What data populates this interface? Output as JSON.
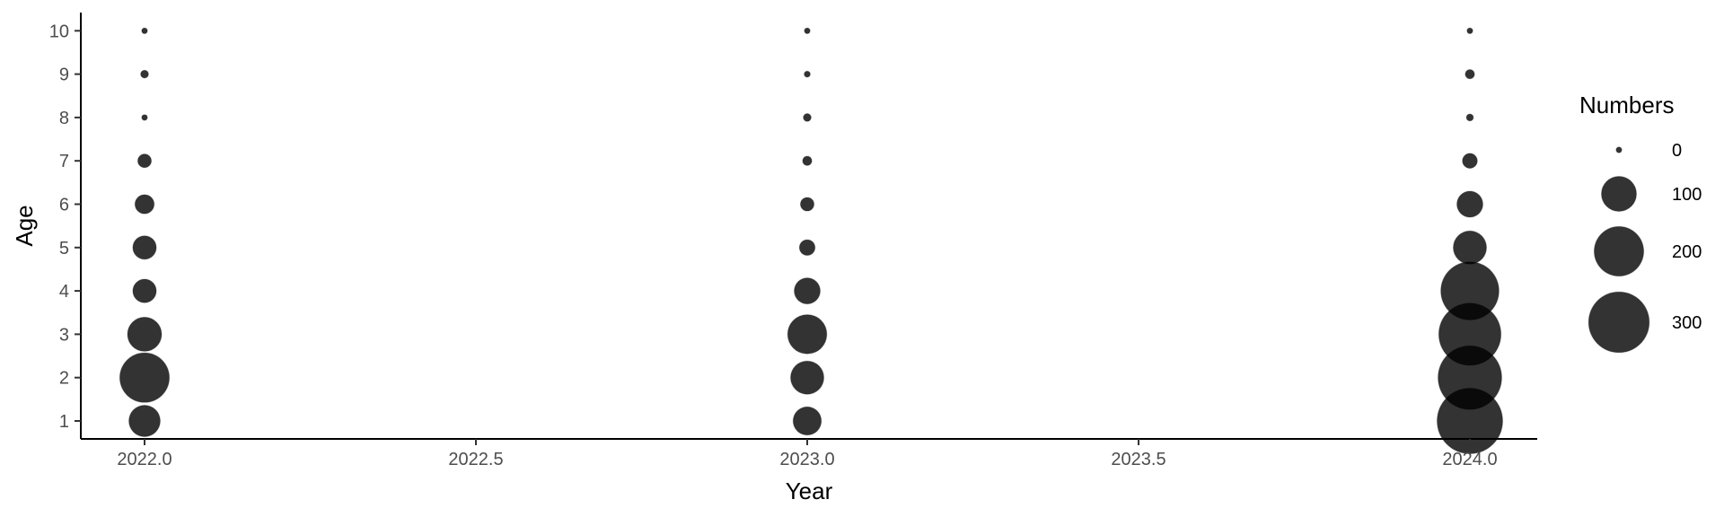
{
  "chart_data": {
    "type": "scatter",
    "title": "",
    "xlabel": "Year",
    "ylabel": "Age",
    "xlim": [
      1.9,
      2.1
    ],
    "x_tick_labels": [
      "2022.0",
      "2022.5",
      "2023.0",
      "2023.5",
      "2024.0"
    ],
    "x_tick_values": [
      2022.0,
      2022.5,
      2023.0,
      2023.5,
      2024.0
    ],
    "ylim": [
      0.6,
      10.4
    ],
    "y_ticks": [
      1,
      2,
      3,
      4,
      5,
      6,
      7,
      8,
      9,
      10
    ],
    "grid": false,
    "size_legend": {
      "title": "Numbers",
      "placement": "right",
      "entries": [
        {
          "label": "0",
          "value": 0
        },
        {
          "label": "100",
          "value": 100
        },
        {
          "label": "200",
          "value": 200
        },
        {
          "label": "300",
          "value": 300
        }
      ]
    },
    "point_color": "#000000",
    "point_opacity": 0.8,
    "points": [
      {
        "year": 2022,
        "age": 1,
        "numbers": 80
      },
      {
        "year": 2022,
        "age": 2,
        "numbers": 200
      },
      {
        "year": 2022,
        "age": 3,
        "numbers": 95
      },
      {
        "year": 2022,
        "age": 4,
        "numbers": 45
      },
      {
        "year": 2022,
        "age": 5,
        "numbers": 45
      },
      {
        "year": 2022,
        "age": 6,
        "numbers": 30
      },
      {
        "year": 2022,
        "age": 7,
        "numbers": 15
      },
      {
        "year": 2022,
        "age": 8,
        "numbers": 1
      },
      {
        "year": 2022,
        "age": 9,
        "numbers": 5
      },
      {
        "year": 2022,
        "age": 10,
        "numbers": 1
      },
      {
        "year": 2023,
        "age": 1,
        "numbers": 65
      },
      {
        "year": 2023,
        "age": 2,
        "numbers": 90
      },
      {
        "year": 2023,
        "age": 3,
        "numbers": 125
      },
      {
        "year": 2023,
        "age": 4,
        "numbers": 55
      },
      {
        "year": 2023,
        "age": 5,
        "numbers": 20
      },
      {
        "year": 2023,
        "age": 6,
        "numbers": 15
      },
      {
        "year": 2023,
        "age": 7,
        "numbers": 7
      },
      {
        "year": 2023,
        "age": 8,
        "numbers": 5
      },
      {
        "year": 2023,
        "age": 9,
        "numbers": 3
      },
      {
        "year": 2023,
        "age": 10,
        "numbers": 2
      },
      {
        "year": 2024,
        "age": 1,
        "numbers": 350
      },
      {
        "year": 2024,
        "age": 2,
        "numbers": 330
      },
      {
        "year": 2024,
        "age": 3,
        "numbers": 315
      },
      {
        "year": 2024,
        "age": 4,
        "numbers": 275
      },
      {
        "year": 2024,
        "age": 5,
        "numbers": 90
      },
      {
        "year": 2024,
        "age": 6,
        "numbers": 55
      },
      {
        "year": 2024,
        "age": 7,
        "numbers": 18
      },
      {
        "year": 2024,
        "age": 8,
        "numbers": 4
      },
      {
        "year": 2024,
        "age": 9,
        "numbers": 7
      },
      {
        "year": 2024,
        "age": 10,
        "numbers": 2
      }
    ]
  }
}
